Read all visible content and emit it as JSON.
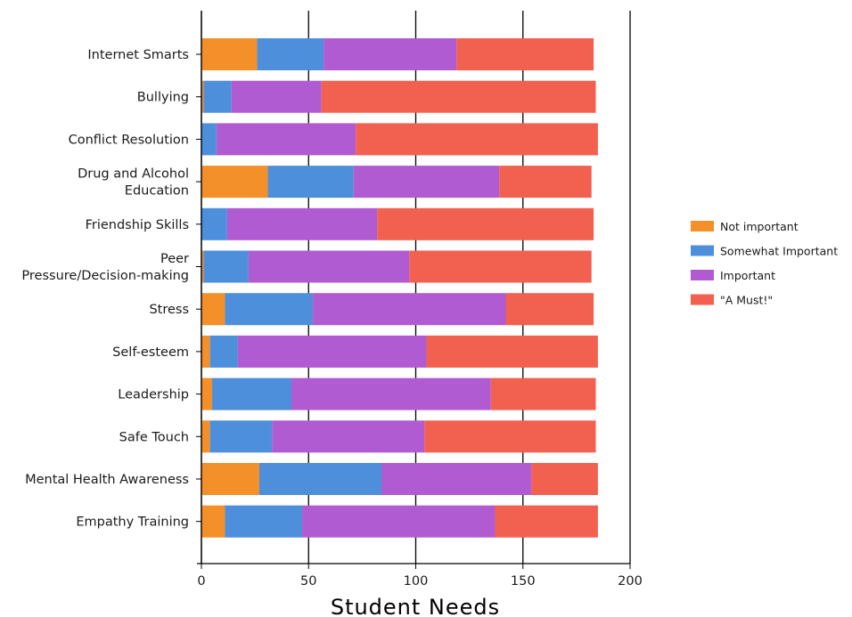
{
  "chart_data": {
    "type": "bar",
    "orientation": "horizontal",
    "stacked": true,
    "xlabel": "Student Needs",
    "ylabel": "",
    "xlim": [
      0,
      200
    ],
    "xticks": [
      0,
      50,
      100,
      150,
      200
    ],
    "grid": true,
    "legend_position": "right",
    "categories": [
      "Internet Smarts",
      "Bullying",
      "Conflict Resolution",
      "Drug and Alcohol Education",
      "Friendship Skills",
      "Peer Pressure/Decision-making",
      "Stress",
      "Self-esteem",
      "Leadership",
      "Safe Touch",
      "Mental Health Awareness",
      "Empathy Training"
    ],
    "category_display_lines": [
      [
        "Internet Smarts"
      ],
      [
        "Bullying"
      ],
      [
        "Conflict Resolution"
      ],
      [
        "Drug and Alcohol",
        "Education"
      ],
      [
        "Friendship Skills"
      ],
      [
        "Peer",
        "Pressure/Decision-making"
      ],
      [
        "Stress"
      ],
      [
        "Self-esteem"
      ],
      [
        "Leadership"
      ],
      [
        "Safe Touch"
      ],
      [
        "Mental Health Awareness"
      ],
      [
        "Empathy Training"
      ]
    ],
    "series": [
      {
        "name": "Not important",
        "color": "#f39029",
        "values": [
          26,
          1,
          0,
          31,
          0,
          1,
          11,
          4,
          5,
          4,
          27,
          11
        ]
      },
      {
        "name": "Somewhat Important",
        "color": "#4e8fdc",
        "values": [
          31,
          13,
          7,
          40,
          12,
          21,
          41,
          13,
          37,
          29,
          57,
          36
        ]
      },
      {
        "name": "Important",
        "color": "#b15bd3",
        "values": [
          62,
          42,
          65,
          68,
          70,
          75,
          90,
          88,
          93,
          71,
          70,
          90
        ]
      },
      {
        "name": "\"A Must!\"",
        "color": "#f26050",
        "values": [
          64,
          128,
          113,
          43,
          101,
          85,
          41,
          80,
          49,
          80,
          31,
          48
        ]
      }
    ]
  }
}
